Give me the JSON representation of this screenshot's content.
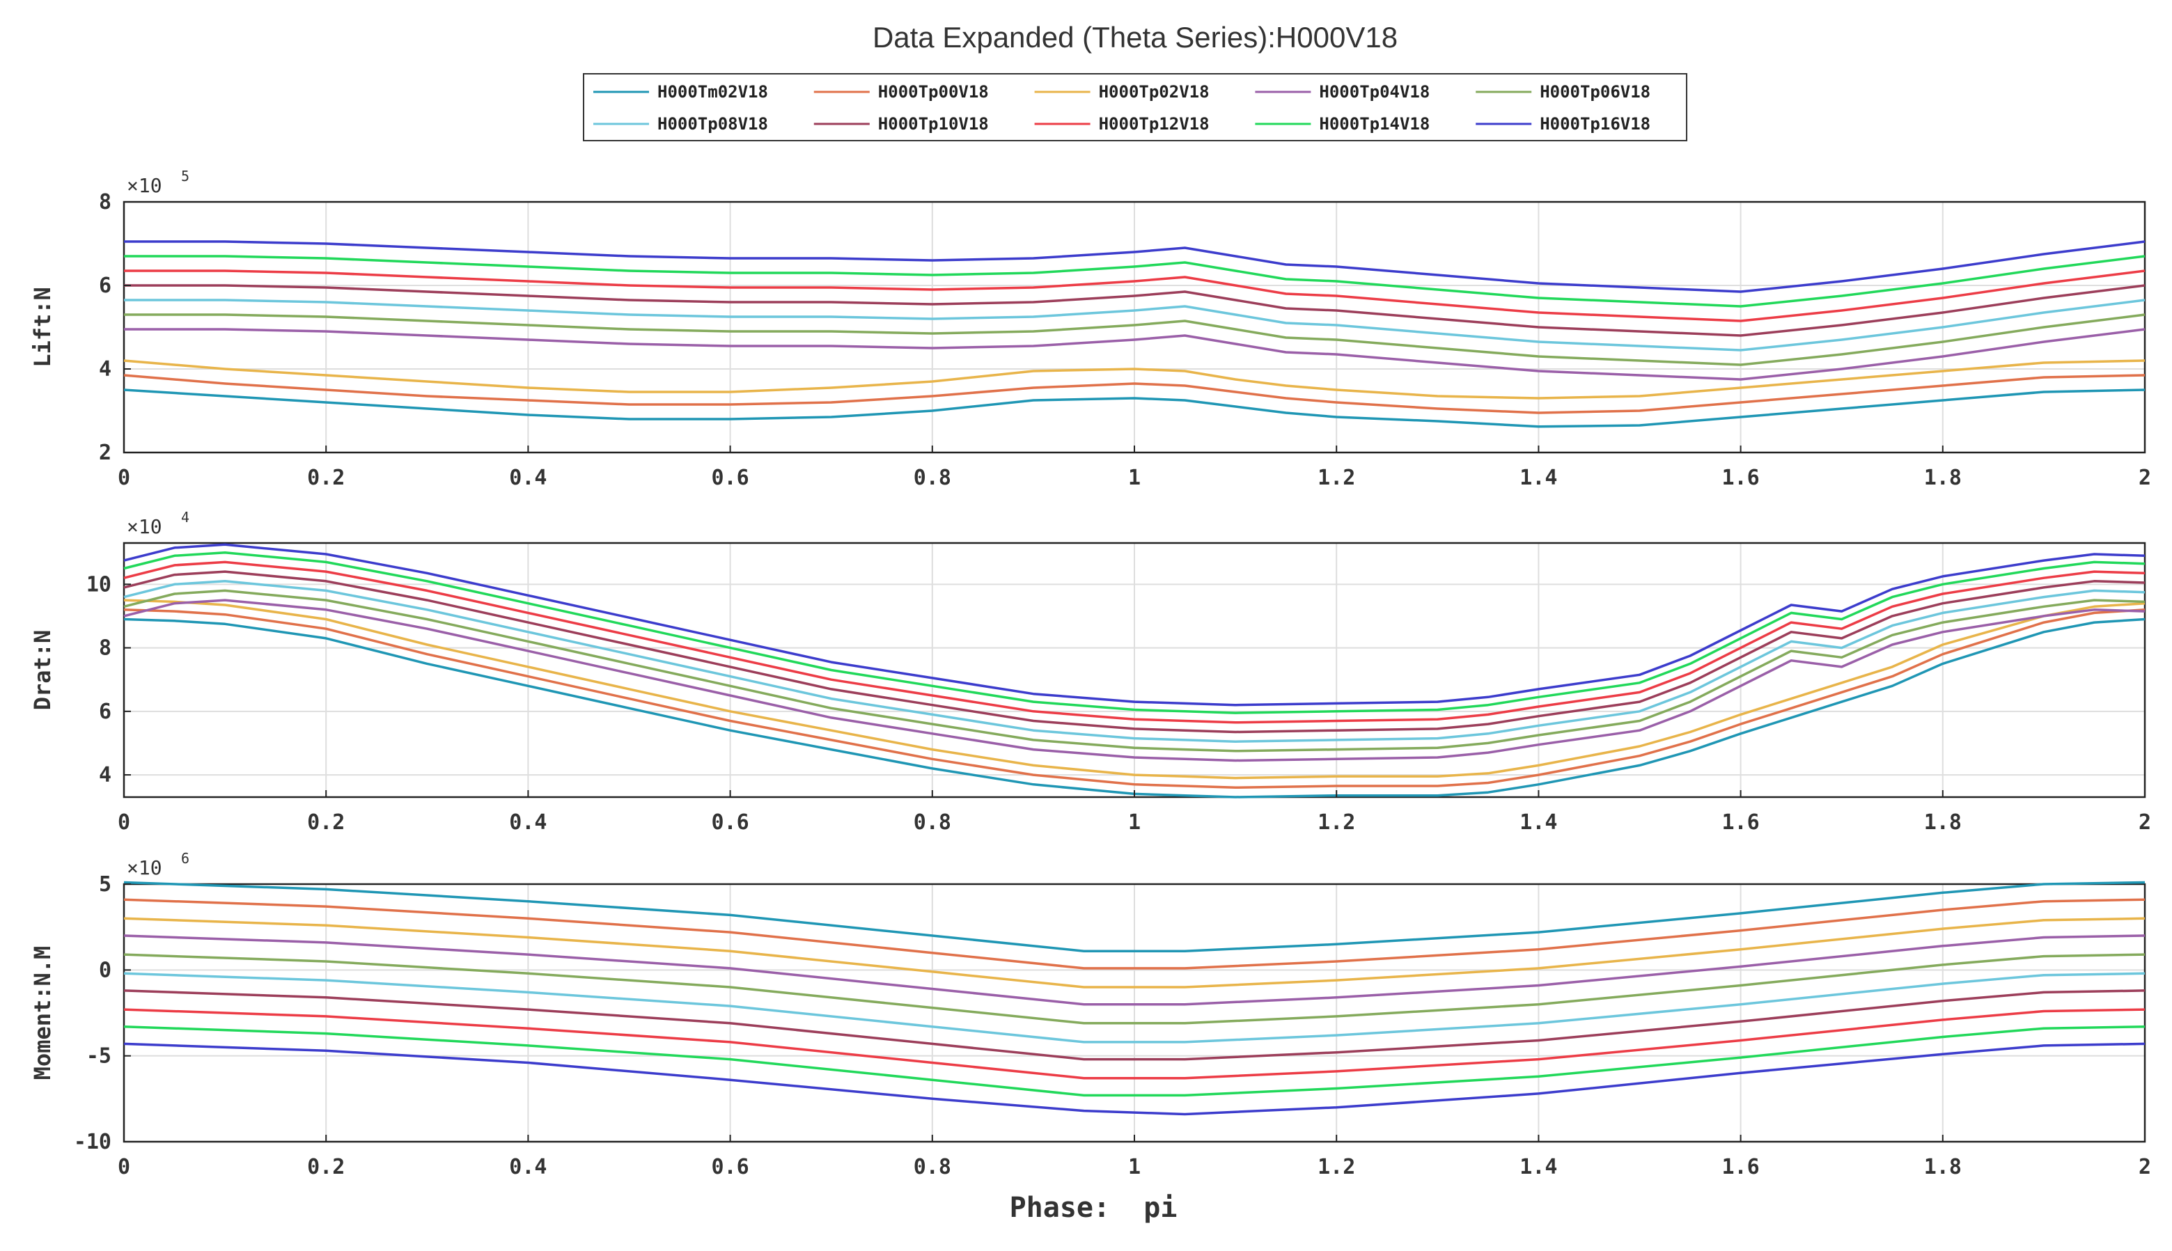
{
  "chart_data": {
    "type": "line",
    "title": "Data Expanded (Theta Series):H000V18",
    "xlabel": "Phase:  pi",
    "xlim": [
      0,
      2
    ],
    "xticks": [
      "0",
      "0.2",
      "0.4",
      "0.6",
      "0.8",
      "1",
      "1.2",
      "1.4",
      "1.6",
      "1.8",
      "2"
    ],
    "legend_position": "top",
    "grid": true,
    "series_names": [
      "H000Tm02V18",
      "H000Tp00V18",
      "H000Tp02V18",
      "H000Tp04V18",
      "H000Tp06V18",
      "H000Tp08V18",
      "H000Tp10V18",
      "H000Tp12V18",
      "H000Tp14V18",
      "H000Tp16V18"
    ],
    "colors": [
      "#1f96b4",
      "#e0714a",
      "#e8b44a",
      "#9a5fa8",
      "#84aa5c",
      "#6cc6dc",
      "#9c3e5a",
      "#ec3c46",
      "#21d85a",
      "#3c3ccc"
    ],
    "subplots": [
      {
        "ylabel": "Lift:N",
        "exponent_label": "×10",
        "exponent_power": "5",
        "ylim": [
          2,
          8
        ],
        "yticks": [
          2,
          4,
          6,
          8
        ],
        "x": [
          0,
          0.1,
          0.2,
          0.3,
          0.4,
          0.5,
          0.6,
          0.7,
          0.8,
          0.9,
          1.0,
          1.05,
          1.1,
          1.15,
          1.2,
          1.3,
          1.4,
          1.5,
          1.6,
          1.7,
          1.8,
          1.9,
          2.0
        ],
        "series": [
          {
            "name": "H000Tm02V18",
            "values": [
              3.5,
              3.35,
              3.2,
              3.05,
              2.9,
              2.8,
              2.8,
              2.85,
              3.0,
              3.25,
              3.3,
              3.25,
              3.1,
              2.95,
              2.85,
              2.75,
              2.62,
              2.65,
              2.85,
              3.05,
              3.25,
              3.45,
              3.5
            ]
          },
          {
            "name": "H000Tp00V18",
            "values": [
              3.85,
              3.65,
              3.5,
              3.35,
              3.25,
              3.15,
              3.15,
              3.2,
              3.35,
              3.55,
              3.65,
              3.6,
              3.45,
              3.3,
              3.2,
              3.05,
              2.95,
              3.0,
              3.2,
              3.4,
              3.6,
              3.8,
              3.85
            ]
          },
          {
            "name": "H000Tp02V18",
            "values": [
              4.2,
              4.0,
              3.85,
              3.7,
              3.55,
              3.45,
              3.45,
              3.55,
              3.7,
              3.95,
              4.0,
              3.95,
              3.75,
              3.6,
              3.5,
              3.35,
              3.3,
              3.35,
              3.55,
              3.75,
              3.95,
              4.15,
              4.2
            ]
          },
          {
            "name": "H000Tp04V18",
            "values": [
              4.95,
              4.95,
              4.9,
              4.8,
              4.7,
              4.6,
              4.55,
              4.55,
              4.5,
              4.55,
              4.7,
              4.8,
              4.6,
              4.4,
              4.35,
              4.15,
              3.95,
              3.85,
              3.75,
              4.0,
              4.3,
              4.65,
              4.95
            ]
          },
          {
            "name": "H000Tp06V18",
            "values": [
              5.3,
              5.3,
              5.25,
              5.15,
              5.05,
              4.95,
              4.9,
              4.9,
              4.85,
              4.9,
              5.05,
              5.15,
              4.95,
              4.75,
              4.7,
              4.5,
              4.3,
              4.2,
              4.1,
              4.35,
              4.65,
              5.0,
              5.3
            ]
          },
          {
            "name": "H000Tp08V18",
            "values": [
              5.65,
              5.65,
              5.6,
              5.5,
              5.4,
              5.3,
              5.25,
              5.25,
              5.2,
              5.25,
              5.4,
              5.5,
              5.3,
              5.1,
              5.05,
              4.85,
              4.65,
              4.55,
              4.45,
              4.7,
              5.0,
              5.35,
              5.65
            ]
          },
          {
            "name": "H000Tp10V18",
            "values": [
              6.0,
              6.0,
              5.95,
              5.85,
              5.75,
              5.65,
              5.6,
              5.6,
              5.55,
              5.6,
              5.75,
              5.85,
              5.65,
              5.45,
              5.4,
              5.2,
              5.0,
              4.9,
              4.8,
              5.05,
              5.35,
              5.7,
              6.0
            ]
          },
          {
            "name": "H000Tp12V18",
            "values": [
              6.35,
              6.35,
              6.3,
              6.2,
              6.1,
              6.0,
              5.95,
              5.95,
              5.9,
              5.95,
              6.1,
              6.2,
              6.0,
              5.8,
              5.75,
              5.55,
              5.35,
              5.25,
              5.15,
              5.4,
              5.7,
              6.05,
              6.35
            ]
          },
          {
            "name": "H000Tp14V18",
            "values": [
              6.7,
              6.7,
              6.65,
              6.55,
              6.45,
              6.35,
              6.3,
              6.3,
              6.25,
              6.3,
              6.45,
              6.55,
              6.35,
              6.15,
              6.1,
              5.9,
              5.7,
              5.6,
              5.5,
              5.75,
              6.05,
              6.4,
              6.7
            ]
          },
          {
            "name": "H000Tp16V18",
            "values": [
              7.05,
              7.05,
              7.0,
              6.9,
              6.8,
              6.7,
              6.65,
              6.65,
              6.6,
              6.65,
              6.8,
              6.9,
              6.7,
              6.5,
              6.45,
              6.25,
              6.05,
              5.95,
              5.85,
              6.1,
              6.4,
              6.75,
              7.05
            ]
          }
        ]
      },
      {
        "ylabel": "Drat:N",
        "exponent_label": "×10",
        "exponent_power": "4",
        "ylim": [
          3.3,
          11.3
        ],
        "yticks": [
          4,
          6,
          8,
          10
        ],
        "x": [
          0,
          0.05,
          0.1,
          0.2,
          0.3,
          0.4,
          0.5,
          0.6,
          0.7,
          0.8,
          0.9,
          1.0,
          1.05,
          1.1,
          1.2,
          1.3,
          1.35,
          1.4,
          1.5,
          1.55,
          1.6,
          1.65,
          1.7,
          1.75,
          1.8,
          1.9,
          1.95,
          2.0
        ],
        "series": [
          {
            "name": "H000Tm02V18",
            "values": [
              8.9,
              8.85,
              8.75,
              8.3,
              7.5,
              6.8,
              6.1,
              5.4,
              4.8,
              4.2,
              3.7,
              3.4,
              3.35,
              3.3,
              3.35,
              3.35,
              3.45,
              3.7,
              4.3,
              4.75,
              5.3,
              5.8,
              6.3,
              6.8,
              7.5,
              8.5,
              8.8,
              8.9
            ]
          },
          {
            "name": "H000Tp00V18",
            "values": [
              9.2,
              9.15,
              9.05,
              8.6,
              7.8,
              7.1,
              6.4,
              5.7,
              5.1,
              4.5,
              4.0,
              3.7,
              3.65,
              3.6,
              3.65,
              3.65,
              3.75,
              4.0,
              4.6,
              5.05,
              5.6,
              6.1,
              6.6,
              7.1,
              7.8,
              8.8,
              9.1,
              9.2
            ]
          },
          {
            "name": "H000Tp02V18",
            "values": [
              9.5,
              9.45,
              9.35,
              8.9,
              8.1,
              7.4,
              6.7,
              6.0,
              5.4,
              4.8,
              4.3,
              4.0,
              3.95,
              3.9,
              3.95,
              3.95,
              4.05,
              4.3,
              4.9,
              5.35,
              5.9,
              6.4,
              6.9,
              7.4,
              8.1,
              9.0,
              9.3,
              9.4
            ]
          },
          {
            "name": "H000Tp04V18",
            "values": [
              9.0,
              9.4,
              9.5,
              9.2,
              8.6,
              7.9,
              7.2,
              6.5,
              5.8,
              5.3,
              4.8,
              4.55,
              4.5,
              4.45,
              4.5,
              4.55,
              4.7,
              4.95,
              5.4,
              6.0,
              6.8,
              7.6,
              7.4,
              8.1,
              8.5,
              9.0,
              9.2,
              9.15
            ]
          },
          {
            "name": "H000Tp06V18",
            "values": [
              9.3,
              9.7,
              9.8,
              9.5,
              8.9,
              8.2,
              7.5,
              6.8,
              6.1,
              5.6,
              5.1,
              4.85,
              4.8,
              4.75,
              4.8,
              4.85,
              5.0,
              5.25,
              5.7,
              6.3,
              7.1,
              7.9,
              7.7,
              8.4,
              8.8,
              9.3,
              9.5,
              9.45
            ]
          },
          {
            "name": "H000Tp08V18",
            "values": [
              9.6,
              10.0,
              10.1,
              9.8,
              9.2,
              8.5,
              7.8,
              7.1,
              6.4,
              5.9,
              5.4,
              5.15,
              5.1,
              5.05,
              5.1,
              5.15,
              5.3,
              5.55,
              6.0,
              6.6,
              7.4,
              8.2,
              8.0,
              8.7,
              9.1,
              9.6,
              9.8,
              9.75
            ]
          },
          {
            "name": "H000Tp10V18",
            "values": [
              9.9,
              10.3,
              10.4,
              10.1,
              9.5,
              8.8,
              8.1,
              7.4,
              6.7,
              6.2,
              5.7,
              5.45,
              5.4,
              5.35,
              5.4,
              5.45,
              5.6,
              5.85,
              6.3,
              6.9,
              7.7,
              8.5,
              8.3,
              9.0,
              9.4,
              9.9,
              10.1,
              10.05
            ]
          },
          {
            "name": "H000Tp12V18",
            "values": [
              10.2,
              10.6,
              10.7,
              10.4,
              9.8,
              9.1,
              8.4,
              7.7,
              7.0,
              6.5,
              6.0,
              5.75,
              5.7,
              5.65,
              5.7,
              5.75,
              5.9,
              6.15,
              6.6,
              7.2,
              8.0,
              8.8,
              8.6,
              9.3,
              9.7,
              10.2,
              10.4,
              10.35
            ]
          },
          {
            "name": "H000Tp14V18",
            "values": [
              10.5,
              10.9,
              11.0,
              10.7,
              10.1,
              9.4,
              8.7,
              8.0,
              7.3,
              6.8,
              6.3,
              6.05,
              6.0,
              5.95,
              6.0,
              6.05,
              6.2,
              6.45,
              6.9,
              7.5,
              8.3,
              9.1,
              8.9,
              9.6,
              10.0,
              10.5,
              10.7,
              10.65
            ]
          },
          {
            "name": "H000Tp16V18",
            "values": [
              10.75,
              11.15,
              11.25,
              10.95,
              10.35,
              9.65,
              8.95,
              8.25,
              7.55,
              7.05,
              6.55,
              6.3,
              6.25,
              6.2,
              6.25,
              6.3,
              6.45,
              6.7,
              7.15,
              7.75,
              8.55,
              9.35,
              9.15,
              9.85,
              10.25,
              10.75,
              10.95,
              10.9
            ]
          }
        ]
      },
      {
        "ylabel": "Moment:N.M",
        "exponent_label": "×10",
        "exponent_power": "6",
        "ylim": [
          -10,
          5
        ],
        "yticks": [
          -10,
          -5,
          0,
          5
        ],
        "x": [
          0,
          0.2,
          0.4,
          0.6,
          0.8,
          0.95,
          1.05,
          1.2,
          1.4,
          1.6,
          1.8,
          1.9,
          2.0
        ],
        "series": [
          {
            "name": "H000Tm02V18",
            "values": [
              5.1,
              4.7,
              4.0,
              3.2,
              2.0,
              1.1,
              1.1,
              1.5,
              2.2,
              3.3,
              4.5,
              5.0,
              5.1
            ]
          },
          {
            "name": "H000Tp00V18",
            "values": [
              4.1,
              3.7,
              3.0,
              2.2,
              1.0,
              0.1,
              0.1,
              0.5,
              1.2,
              2.3,
              3.5,
              4.0,
              4.1
            ]
          },
          {
            "name": "H000Tp02V18",
            "values": [
              3.0,
              2.6,
              1.9,
              1.1,
              -0.1,
              -1.0,
              -1.0,
              -0.6,
              0.1,
              1.2,
              2.4,
              2.9,
              3.0
            ]
          },
          {
            "name": "H000Tp04V18",
            "values": [
              2.0,
              1.6,
              0.9,
              0.1,
              -1.1,
              -2.0,
              -2.0,
              -1.6,
              -0.9,
              0.2,
              1.4,
              1.9,
              2.0
            ]
          },
          {
            "name": "H000Tp06V18",
            "values": [
              0.9,
              0.5,
              -0.2,
              -1.0,
              -2.2,
              -3.1,
              -3.1,
              -2.7,
              -2.0,
              -0.9,
              0.3,
              0.8,
              0.9
            ]
          },
          {
            "name": "H000Tp08V18",
            "values": [
              -0.2,
              -0.6,
              -1.3,
              -2.1,
              -3.3,
              -4.2,
              -4.2,
              -3.8,
              -3.1,
              -2.0,
              -0.8,
              -0.3,
              -0.2
            ]
          },
          {
            "name": "H000Tp10V18",
            "values": [
              -1.2,
              -1.6,
              -2.3,
              -3.1,
              -4.3,
              -5.2,
              -5.2,
              -4.8,
              -4.1,
              -3.0,
              -1.8,
              -1.3,
              -1.2
            ]
          },
          {
            "name": "H000Tp12V18",
            "values": [
              -2.3,
              -2.7,
              -3.4,
              -4.2,
              -5.4,
              -6.3,
              -6.3,
              -5.9,
              -5.2,
              -4.1,
              -2.9,
              -2.4,
              -2.3
            ]
          },
          {
            "name": "H000Tp14V18",
            "values": [
              -3.3,
              -3.7,
              -4.4,
              -5.2,
              -6.4,
              -7.3,
              -7.3,
              -6.9,
              -6.2,
              -5.1,
              -3.9,
              -3.4,
              -3.3
            ]
          },
          {
            "name": "H000Tp16V18",
            "values": [
              -4.3,
              -4.7,
              -5.4,
              -6.4,
              -7.5,
              -8.2,
              -8.4,
              -8.0,
              -7.2,
              -6.0,
              -4.9,
              -4.4,
              -4.3
            ]
          }
        ]
      }
    ]
  }
}
